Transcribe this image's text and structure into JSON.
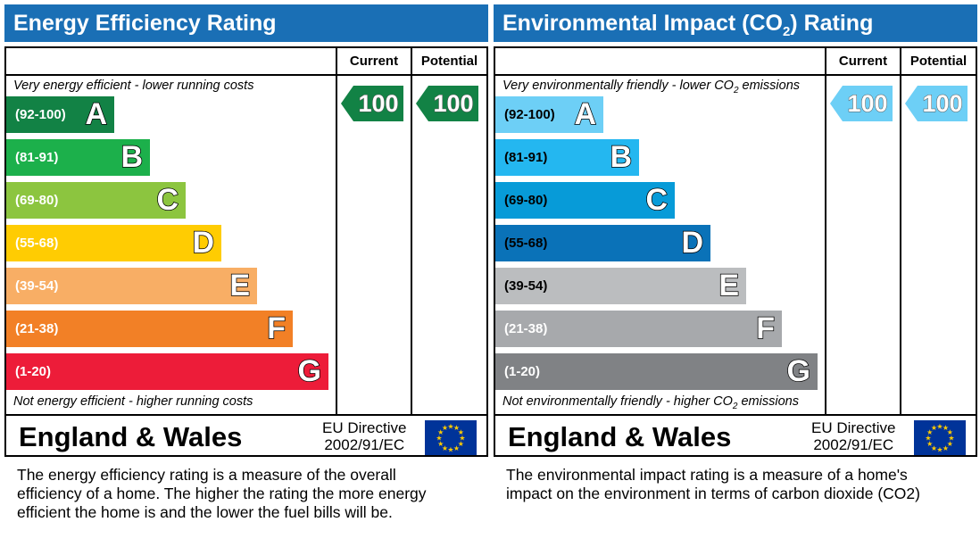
{
  "chart_data": [
    {
      "type": "bar",
      "title": "Energy Efficiency Rating",
      "columns": [
        "Current",
        "Potential"
      ],
      "top_caption": "Very energy efficient - lower running costs",
      "bottom_caption": "Not energy efficient - higher running costs",
      "bands": [
        {
          "range": "(92-100)",
          "letter": "A",
          "color": "#128245"
        },
        {
          "range": "(81-91)",
          "letter": "B",
          "color": "#1cb04b"
        },
        {
          "range": "(69-80)",
          "letter": "C",
          "color": "#8cc53f"
        },
        {
          "range": "(55-68)",
          "letter": "D",
          "color": "#ffcc02"
        },
        {
          "range": "(39-54)",
          "letter": "E",
          "color": "#f8ae65"
        },
        {
          "range": "(21-38)",
          "letter": "F",
          "color": "#f28026"
        },
        {
          "range": "(1-20)",
          "letter": "G",
          "color": "#ed1c39"
        }
      ],
      "current": {
        "value": "100",
        "band": "A"
      },
      "potential": {
        "value": "100",
        "band": "A"
      },
      "arrow_color": "#128245",
      "footer": {
        "region": "England & Wales",
        "directive_line1": "EU Directive",
        "directive_line2": "2002/91/EC"
      },
      "description": [
        "The energy efficiency rating is a measure of the overall",
        "efficiency of a home.  The higher the rating the more energy",
        "efficient the home is and the lower the fuel bills will be."
      ]
    },
    {
      "type": "bar",
      "title": "Environmental Impact (CO",
      "title_sub": "2",
      "title_end": ") Rating",
      "columns": [
        "Current",
        "Potential"
      ],
      "top_caption": "Very environmentally friendly - lower CO",
      "top_caption_sub": "2",
      "top_caption_end": " emissions",
      "bottom_caption": "Not environmentally friendly - higher CO",
      "bottom_caption_sub": "2",
      "bottom_caption_end": " emissions",
      "bands": [
        {
          "range": "(92-100)",
          "letter": "A",
          "color": "#6dcff6"
        },
        {
          "range": "(81-91)",
          "letter": "B",
          "color": "#24b7f0"
        },
        {
          "range": "(69-80)",
          "letter": "C",
          "color": "#079bd8"
        },
        {
          "range": "(55-68)",
          "letter": "D",
          "color": "#0a72b8"
        },
        {
          "range": "(39-54)",
          "letter": "E",
          "color": "#bbbdbf"
        },
        {
          "range": "(21-38)",
          "letter": "F",
          "color": "#a7a9ac"
        },
        {
          "range": "(1-20)",
          "letter": "G",
          "color": "#808285"
        }
      ],
      "current": {
        "value": "100",
        "band": "A"
      },
      "potential": {
        "value": "100",
        "band": "A"
      },
      "arrow_color": "#6dcff6",
      "footer": {
        "region": "England & Wales",
        "directive_line1": "EU Directive",
        "directive_line2": "2002/91/EC"
      },
      "description": [
        "The environmental impact rating is a measure of a home's",
        "impact on the environment in terms of carbon dioxide (CO2)"
      ]
    }
  ]
}
